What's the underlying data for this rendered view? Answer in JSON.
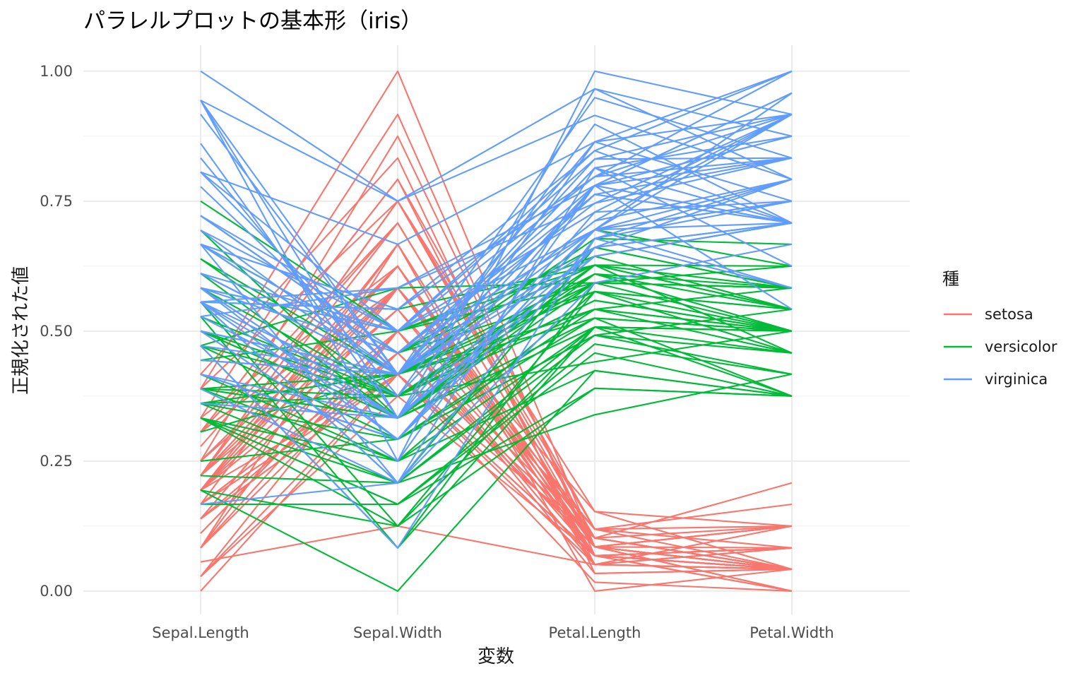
{
  "chart_data": {
    "type": "line",
    "title": "パラレルプロットの基本形（iris）",
    "xlabel": "変数",
    "ylabel": "正規化された値",
    "categories": [
      "Sepal.Length",
      "Sepal.Width",
      "Petal.Length",
      "Petal.Width"
    ],
    "ylim": [
      -0.045,
      1.05
    ],
    "yticks": [
      0,
      0.25,
      0.5,
      0.75,
      1.0
    ],
    "ytick_labels": [
      "0.00",
      "0.25",
      "0.50",
      "0.75",
      "1.00"
    ],
    "grid": true,
    "legend": {
      "title": "種",
      "position": "right"
    },
    "series": [
      {
        "name": "setosa",
        "color": "#F8766D",
        "lines": [
          [
            0.222,
            0.625,
            0.068,
            0.042
          ],
          [
            0.167,
            0.417,
            0.068,
            0.042
          ],
          [
            0.111,
            0.5,
            0.051,
            0.042
          ],
          [
            0.083,
            0.458,
            0.085,
            0.042
          ],
          [
            0.194,
            0.667,
            0.068,
            0.042
          ],
          [
            0.306,
            0.792,
            0.119,
            0.125
          ],
          [
            0.083,
            0.583,
            0.068,
            0.083
          ],
          [
            0.194,
            0.583,
            0.085,
            0.042
          ],
          [
            0.028,
            0.375,
            0.068,
            0.042
          ],
          [
            0.167,
            0.458,
            0.085,
            0.0
          ],
          [
            0.306,
            0.708,
            0.085,
            0.042
          ],
          [
            0.139,
            0.583,
            0.102,
            0.042
          ],
          [
            0.139,
            0.417,
            0.068,
            0.0
          ],
          [
            0.0,
            0.417,
            0.017,
            0.0
          ],
          [
            0.417,
            0.833,
            0.034,
            0.042
          ],
          [
            0.389,
            1.0,
            0.085,
            0.125
          ],
          [
            0.306,
            0.792,
            0.051,
            0.125
          ],
          [
            0.222,
            0.625,
            0.068,
            0.083
          ],
          [
            0.389,
            0.75,
            0.119,
            0.083
          ],
          [
            0.222,
            0.75,
            0.085,
            0.083
          ],
          [
            0.306,
            0.583,
            0.119,
            0.042
          ],
          [
            0.222,
            0.708,
            0.085,
            0.125
          ],
          [
            0.083,
            0.667,
            0.0,
            0.042
          ],
          [
            0.222,
            0.542,
            0.119,
            0.167
          ],
          [
            0.139,
            0.583,
            0.153,
            0.042
          ],
          [
            0.194,
            0.417,
            0.102,
            0.042
          ],
          [
            0.194,
            0.583,
            0.102,
            0.125
          ],
          [
            0.25,
            0.625,
            0.085,
            0.042
          ],
          [
            0.25,
            0.583,
            0.068,
            0.042
          ],
          [
            0.111,
            0.5,
            0.102,
            0.042
          ],
          [
            0.139,
            0.458,
            0.102,
            0.042
          ],
          [
            0.306,
            0.583,
            0.085,
            0.125
          ],
          [
            0.25,
            0.875,
            0.085,
            0.0
          ],
          [
            0.333,
            0.917,
            0.068,
            0.042
          ],
          [
            0.167,
            0.458,
            0.085,
            0.042
          ],
          [
            0.194,
            0.5,
            0.034,
            0.042
          ],
          [
            0.333,
            0.625,
            0.051,
            0.042
          ],
          [
            0.167,
            0.667,
            0.068,
            0.0
          ],
          [
            0.028,
            0.417,
            0.051,
            0.042
          ],
          [
            0.222,
            0.583,
            0.085,
            0.042
          ],
          [
            0.194,
            0.625,
            0.051,
            0.083
          ],
          [
            0.056,
            0.125,
            0.051,
            0.083
          ],
          [
            0.028,
            0.5,
            0.051,
            0.042
          ],
          [
            0.194,
            0.625,
            0.102,
            0.208
          ],
          [
            0.222,
            0.75,
            0.153,
            0.125
          ],
          [
            0.139,
            0.417,
            0.068,
            0.083
          ],
          [
            0.222,
            0.75,
            0.102,
            0.042
          ],
          [
            0.083,
            0.5,
            0.068,
            0.042
          ],
          [
            0.278,
            0.708,
            0.085,
            0.042
          ],
          [
            0.194,
            0.542,
            0.068,
            0.042
          ]
        ]
      },
      {
        "name": "versicolor",
        "color": "#00BA38",
        "lines": [
          [
            0.75,
            0.5,
            0.627,
            0.542
          ],
          [
            0.583,
            0.5,
            0.593,
            0.583
          ],
          [
            0.722,
            0.458,
            0.661,
            0.583
          ],
          [
            0.333,
            0.125,
            0.508,
            0.5
          ],
          [
            0.611,
            0.333,
            0.61,
            0.583
          ],
          [
            0.389,
            0.333,
            0.593,
            0.5
          ],
          [
            0.556,
            0.542,
            0.627,
            0.625
          ],
          [
            0.167,
            0.167,
            0.39,
            0.375
          ],
          [
            0.639,
            0.375,
            0.61,
            0.5
          ],
          [
            0.25,
            0.292,
            0.492,
            0.542
          ],
          [
            0.194,
            0.0,
            0.424,
            0.375
          ],
          [
            0.444,
            0.417,
            0.542,
            0.583
          ],
          [
            0.472,
            0.083,
            0.508,
            0.375
          ],
          [
            0.5,
            0.375,
            0.627,
            0.542
          ],
          [
            0.361,
            0.375,
            0.441,
            0.5
          ],
          [
            0.667,
            0.458,
            0.576,
            0.542
          ],
          [
            0.361,
            0.417,
            0.593,
            0.583
          ],
          [
            0.417,
            0.292,
            0.525,
            0.375
          ],
          [
            0.528,
            0.083,
            0.593,
            0.583
          ],
          [
            0.361,
            0.208,
            0.492,
            0.417
          ],
          [
            0.444,
            0.5,
            0.644,
            0.708
          ],
          [
            0.5,
            0.333,
            0.508,
            0.5
          ],
          [
            0.556,
            0.208,
            0.661,
            0.583
          ],
          [
            0.5,
            0.333,
            0.627,
            0.458
          ],
          [
            0.583,
            0.375,
            0.559,
            0.5
          ],
          [
            0.639,
            0.417,
            0.576,
            0.542
          ],
          [
            0.694,
            0.333,
            0.644,
            0.542
          ],
          [
            0.667,
            0.417,
            0.678,
            0.667
          ],
          [
            0.472,
            0.375,
            0.593,
            0.583
          ],
          [
            0.389,
            0.25,
            0.424,
            0.375
          ],
          [
            0.333,
            0.167,
            0.475,
            0.417
          ],
          [
            0.333,
            0.167,
            0.458,
            0.375
          ],
          [
            0.417,
            0.292,
            0.492,
            0.458
          ],
          [
            0.472,
            0.292,
            0.695,
            0.625
          ],
          [
            0.306,
            0.417,
            0.593,
            0.583
          ],
          [
            0.472,
            0.583,
            0.593,
            0.625
          ],
          [
            0.667,
            0.458,
            0.627,
            0.583
          ],
          [
            0.556,
            0.125,
            0.576,
            0.5
          ],
          [
            0.361,
            0.417,
            0.525,
            0.5
          ],
          [
            0.333,
            0.208,
            0.508,
            0.5
          ],
          [
            0.333,
            0.25,
            0.576,
            0.458
          ],
          [
            0.5,
            0.417,
            0.61,
            0.542
          ],
          [
            0.417,
            0.25,
            0.508,
            0.458
          ],
          [
            0.194,
            0.125,
            0.39,
            0.375
          ],
          [
            0.361,
            0.292,
            0.542,
            0.5
          ],
          [
            0.389,
            0.417,
            0.542,
            0.458
          ],
          [
            0.389,
            0.375,
            0.542,
            0.5
          ],
          [
            0.528,
            0.375,
            0.559,
            0.5
          ],
          [
            0.222,
            0.208,
            0.339,
            0.417
          ],
          [
            0.389,
            0.333,
            0.525,
            0.5
          ]
        ]
      },
      {
        "name": "virginica",
        "color": "#619CFF",
        "lines": [
          [
            0.556,
            0.542,
            0.847,
            1.0
          ],
          [
            0.417,
            0.292,
            0.695,
            0.75
          ],
          [
            0.778,
            0.417,
            0.831,
            0.833
          ],
          [
            0.556,
            0.375,
            0.78,
            0.708
          ],
          [
            0.611,
            0.417,
            0.814,
            0.875
          ],
          [
            0.917,
            0.417,
            0.949,
            0.833
          ],
          [
            0.167,
            0.208,
            0.593,
            0.667
          ],
          [
            0.833,
            0.375,
            0.898,
            0.708
          ],
          [
            0.667,
            0.208,
            0.814,
            0.708
          ],
          [
            0.806,
            0.667,
            0.864,
            1.0
          ],
          [
            0.611,
            0.5,
            0.695,
            0.792
          ],
          [
            0.583,
            0.292,
            0.729,
            0.75
          ],
          [
            0.694,
            0.417,
            0.763,
            0.833
          ],
          [
            0.389,
            0.208,
            0.678,
            0.792
          ],
          [
            0.417,
            0.333,
            0.695,
            0.958
          ],
          [
            0.583,
            0.5,
            0.729,
            0.917
          ],
          [
            0.611,
            0.417,
            0.763,
            0.708
          ],
          [
            0.944,
            0.75,
            0.966,
            0.875
          ],
          [
            0.944,
            0.25,
            1.0,
            0.917
          ],
          [
            0.472,
            0.083,
            0.678,
            0.583
          ],
          [
            0.722,
            0.5,
            0.797,
            0.917
          ],
          [
            0.361,
            0.333,
            0.661,
            0.792
          ],
          [
            0.944,
            0.333,
            0.966,
            0.792
          ],
          [
            0.556,
            0.292,
            0.661,
            0.708
          ],
          [
            0.667,
            0.542,
            0.797,
            0.833
          ],
          [
            0.806,
            0.5,
            0.847,
            0.708
          ],
          [
            0.528,
            0.333,
            0.644,
            0.708
          ],
          [
            0.5,
            0.417,
            0.661,
            0.708
          ],
          [
            0.583,
            0.333,
            0.78,
            0.833
          ],
          [
            0.806,
            0.417,
            0.814,
            0.625
          ],
          [
            0.861,
            0.333,
            0.864,
            0.75
          ],
          [
            1.0,
            0.75,
            0.915,
            0.792
          ],
          [
            0.583,
            0.333,
            0.78,
            0.875
          ],
          [
            0.556,
            0.333,
            0.695,
            0.583
          ],
          [
            0.5,
            0.25,
            0.78,
            0.542
          ],
          [
            0.944,
            0.417,
            0.864,
            0.917
          ],
          [
            0.556,
            0.583,
            0.78,
            0.958
          ],
          [
            0.583,
            0.458,
            0.763,
            0.708
          ],
          [
            0.472,
            0.417,
            0.644,
            0.708
          ],
          [
            0.722,
            0.458,
            0.746,
            0.833
          ],
          [
            0.667,
            0.458,
            0.78,
            0.958
          ],
          [
            0.722,
            0.458,
            0.695,
            0.917
          ],
          [
            0.417,
            0.292,
            0.695,
            0.75
          ],
          [
            0.694,
            0.5,
            0.831,
            0.917
          ],
          [
            0.667,
            0.542,
            0.797,
            1.0
          ],
          [
            0.667,
            0.417,
            0.712,
            0.917
          ],
          [
            0.556,
            0.208,
            0.678,
            0.75
          ],
          [
            0.611,
            0.417,
            0.712,
            0.792
          ],
          [
            0.528,
            0.583,
            0.746,
            0.917
          ],
          [
            0.444,
            0.417,
            0.695,
            0.708
          ]
        ]
      }
    ]
  }
}
